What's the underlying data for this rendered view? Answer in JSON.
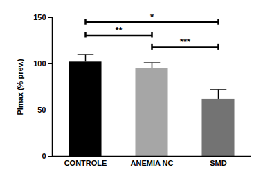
{
  "chart_data": {
    "type": "bar",
    "categories": [
      "CONTROLE",
      "ANEMIA NC",
      "SMD"
    ],
    "values": [
      102,
      95,
      62
    ],
    "errors": [
      8,
      6,
      10
    ],
    "colors": [
      "#000000",
      "#a6a6a6",
      "#737373"
    ],
    "y_label": "PImax (% prev.)",
    "ylim": [
      0,
      150
    ],
    "yticks": [
      0,
      50,
      100,
      150
    ],
    "comparisons": [
      {
        "from": "CONTROLE",
        "to": "SMD",
        "label": "*",
        "y": 145
      },
      {
        "from": "CONTROLE",
        "to": "ANEMIA NC",
        "label": "**",
        "y": 131
      },
      {
        "from": "ANEMIA NC",
        "to": "SMD",
        "label": "***",
        "y": 118
      }
    ]
  }
}
